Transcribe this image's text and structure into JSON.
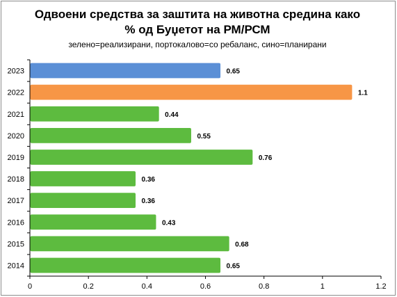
{
  "chart_data": {
    "type": "bar",
    "orientation": "horizontal",
    "title_line1": "Одвоени средства за заштита на животна средина како",
    "title_line2": "% од Буџетот на РМ/РСМ",
    "subtitle": "зелено=реализирани, портокалово=со ребаланс, сино=планирани",
    "categories": [
      "2023",
      "2022",
      "2021",
      "2020",
      "2019",
      "2018",
      "2017",
      "2016",
      "2015",
      "2014"
    ],
    "values": [
      0.65,
      1.1,
      0.44,
      0.55,
      0.76,
      0.36,
      0.36,
      0.43,
      0.68,
      0.65
    ],
    "value_labels": [
      "0.65",
      "1.1",
      "0.44",
      "0.55",
      "0.76",
      "0.36",
      "0.36",
      "0.43",
      "0.68",
      "0.65"
    ],
    "bar_colors": [
      "#5b8fd6",
      "#f79646",
      "#5dbb3f",
      "#5dbb3f",
      "#5dbb3f",
      "#5dbb3f",
      "#5dbb3f",
      "#5dbb3f",
      "#5dbb3f",
      "#5dbb3f"
    ],
    "xlim": [
      0,
      1.2
    ],
    "xticks": [
      "0",
      "0.2",
      "0.4",
      "0.6",
      "0.8",
      "1",
      "1.2"
    ],
    "xlabel": "",
    "ylabel": "",
    "grid": false,
    "legend": "none"
  }
}
